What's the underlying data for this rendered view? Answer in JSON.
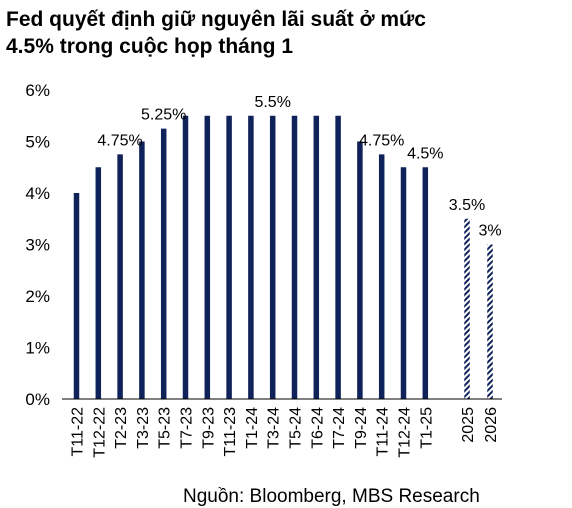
{
  "title_lines": [
    "Fed quyết định giữ nguyên lãi suất ở mức",
    "4.5% trong cuộc họp tháng 1"
  ],
  "source": "Nguồn: Bloomberg, MBS Research",
  "colors": {
    "bar": "#0f2259",
    "projection_stripe": "#0f2259",
    "axis": "#000000"
  },
  "chart_data": {
    "type": "bar",
    "title": "Fed quyết định giữ nguyên lãi suất ở mức 4.5% trong cuộc họp tháng 1",
    "ylim": [
      0,
      6
    ],
    "yticks": [
      "0%",
      "1%",
      "2%",
      "3%",
      "4%",
      "5%",
      "6%"
    ],
    "grid": false,
    "legend": "none",
    "categories": [
      "T11-22",
      "T12-22",
      "T2-23",
      "T3-23",
      "T5-23",
      "T7-23",
      "T9-23",
      "T11-23",
      "T1-24",
      "T3-24",
      "T5-24",
      "T6-24",
      "T7-24",
      "T9-24",
      "T11-24",
      "T12-24",
      "T1-25"
    ],
    "values": [
      4.0,
      4.5,
      4.75,
      5.0,
      5.25,
      5.5,
      5.5,
      5.5,
      5.5,
      5.5,
      5.5,
      5.5,
      5.5,
      5.0,
      4.75,
      4.5,
      4.5
    ],
    "projection_categories": [
      "2025",
      "2026"
    ],
    "projection_values": [
      3.5,
      3.0
    ],
    "annotations": [
      {
        "category": "T2-23",
        "label": "4.75%"
      },
      {
        "category": "T5-23",
        "label": "5.25%"
      },
      {
        "category": "T3-24",
        "label": "5.5%"
      },
      {
        "category": "T11-24",
        "label": "4.75%"
      },
      {
        "category": "T1-25",
        "label": "4.5%"
      },
      {
        "category": "2025",
        "label": "3.5%"
      },
      {
        "category": "2026",
        "label": "3%"
      }
    ]
  }
}
